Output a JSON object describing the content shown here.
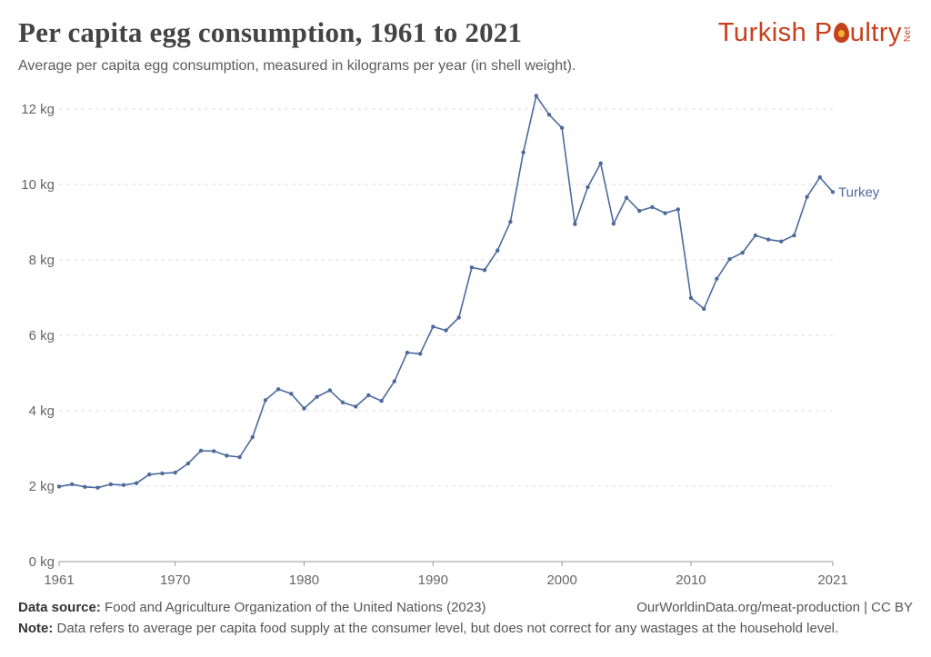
{
  "header": {
    "title": "Per capita egg consumption, 1961 to 2021",
    "subtitle": "Average per capita egg consumption, measured in kilograms per year (in shell weight)."
  },
  "logo": {
    "text_left": "Turkish P",
    "text_right": "ultry",
    "text_net": "Net",
    "color": "#c5401c"
  },
  "footer": {
    "source_label": "Data source:",
    "source_text": " Food and Agriculture Organization of the United Nations (2023)",
    "url": "OurWorldinData.org/meat-production | CC BY",
    "note_label": "Note:",
    "note_text": " Data refers to average per capita food supply at the consumer level, but does not correct for any wastages at the household level."
  },
  "chart_data": {
    "type": "line",
    "title": "Per capita egg consumption, 1961 to 2021",
    "ylim": [
      0,
      12
    ],
    "xlim": [
      1961,
      2021
    ],
    "yticks": [
      0,
      2,
      4,
      6,
      8,
      10,
      12
    ],
    "ytick_labels": [
      "0 kg",
      "2 kg",
      "4 kg",
      "6 kg",
      "8 kg",
      "10 kg",
      "12 kg"
    ],
    "xticks": [
      1961,
      1970,
      1980,
      1990,
      2000,
      2010,
      2021
    ],
    "grid": true,
    "line_color": "#4c6a9c",
    "series": [
      {
        "name": "Turkey",
        "x": [
          1961,
          1962,
          1963,
          1964,
          1965,
          1966,
          1967,
          1968,
          1969,
          1970,
          1971,
          1972,
          1973,
          1974,
          1975,
          1976,
          1977,
          1978,
          1979,
          1980,
          1981,
          1982,
          1983,
          1984,
          1985,
          1986,
          1987,
          1988,
          1989,
          1990,
          1991,
          1992,
          1993,
          1994,
          1995,
          1996,
          1997,
          1998,
          1999,
          2000,
          2001,
          2002,
          2003,
          2004,
          2005,
          2006,
          2007,
          2008,
          2009,
          2010,
          2011,
          2012,
          2013,
          2014,
          2015,
          2016,
          2017,
          2018,
          2019,
          2020,
          2021
        ],
        "y": [
          1.99,
          2.05,
          1.98,
          1.96,
          2.05,
          2.03,
          2.08,
          2.31,
          2.34,
          2.36,
          2.6,
          2.94,
          2.93,
          2.81,
          2.77,
          3.3,
          4.28,
          4.57,
          4.45,
          4.06,
          4.37,
          4.54,
          4.22,
          4.11,
          4.41,
          4.26,
          4.78,
          5.54,
          5.51,
          6.23,
          6.13,
          6.47,
          7.8,
          7.73,
          8.25,
          9.01,
          10.85,
          12.35,
          11.85,
          11.5,
          8.95,
          9.93,
          10.56,
          8.96,
          9.65,
          9.3,
          9.4,
          9.24,
          9.34,
          6.99,
          6.7,
          7.5,
          8.02,
          8.19,
          8.65,
          8.54,
          8.49,
          8.65,
          9.67,
          10.19,
          9.8
        ]
      }
    ]
  }
}
